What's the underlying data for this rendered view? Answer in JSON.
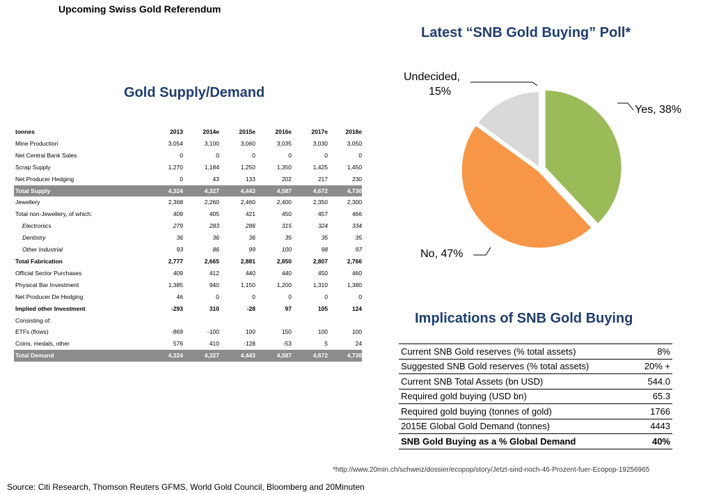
{
  "title": "Upcoming Swiss Gold Referendum",
  "supply_demand": {
    "title": "Gold Supply/Demand",
    "columns": [
      "tonnes",
      "2013",
      "2014e",
      "2015e",
      "2016e",
      "2017e",
      "2018e"
    ],
    "rows": [
      {
        "label": "Mine Production",
        "style": "normal",
        "values": [
          "3,054",
          "3,100",
          "3,060",
          "3,035",
          "3,030",
          "3,050"
        ]
      },
      {
        "label": "Net Central Bank Sales",
        "style": "normal",
        "values": [
          "0",
          "0",
          "0",
          "0",
          "0",
          "0"
        ]
      },
      {
        "label": "Scrap Supply",
        "style": "normal",
        "values": [
          "1,270",
          "1,184",
          "1,250",
          "1,350",
          "1,425",
          "1,450"
        ]
      },
      {
        "label": "Net Producer Hedging",
        "style": "normal",
        "values": [
          "0",
          "43",
          "133",
          "202",
          "217",
          "230"
        ]
      },
      {
        "label": "Total Supply",
        "style": "shade",
        "values": [
          "4,324",
          "4,327",
          "4,443",
          "4,587",
          "4,672",
          "4,730"
        ]
      },
      {
        "label": "Jewellery",
        "style": "normal",
        "values": [
          "2,368",
          "2,260",
          "2,460",
          "2,400",
          "2,350",
          "2,300"
        ]
      },
      {
        "label": "Total non-Jewellery, of which:",
        "style": "normal",
        "values": [
          "409",
          "405",
          "421",
          "450",
          "457",
          "466"
        ]
      },
      {
        "label": "Electronics",
        "style": "italic",
        "values": [
          "279",
          "283",
          "286",
          "315",
          "324",
          "334"
        ]
      },
      {
        "label": "Dentistry",
        "style": "italic",
        "values": [
          "36",
          "36",
          "36",
          "35",
          "35",
          "35"
        ]
      },
      {
        "label": "Other Industrial",
        "style": "italic",
        "values": [
          "93",
          "86",
          "99",
          "100",
          "98",
          "97"
        ]
      },
      {
        "label": "Total Fabrication",
        "style": "bold",
        "values": [
          "2,777",
          "2,665",
          "2,881",
          "2,850",
          "2,807",
          "2,766"
        ]
      },
      {
        "label": "Official Sector Purchases",
        "style": "normal",
        "values": [
          "409",
          "412",
          "440",
          "440",
          "450",
          "460"
        ]
      },
      {
        "label": "Physical Bar Investment",
        "style": "normal",
        "values": [
          "1,385",
          "940",
          "1,150",
          "1,200",
          "1,310",
          "1,380"
        ]
      },
      {
        "label": "Net Producer De Hedging",
        "style": "normal",
        "values": [
          "46",
          "0",
          "0",
          "0",
          "0",
          "0"
        ]
      },
      {
        "label": "Implied other Investment",
        "style": "bold",
        "values": [
          "-293",
          "310",
          "-28",
          "97",
          "105",
          "124"
        ]
      },
      {
        "label": "Consisting of:",
        "style": "normal",
        "values": [
          "",
          "",
          "",
          "",
          "",
          ""
        ]
      },
      {
        "label": "ETFs (flows)",
        "style": "normal",
        "values": [
          "-869",
          "-100",
          "100",
          "150",
          "100",
          "100"
        ]
      },
      {
        "label": "Coins, medals, other",
        "style": "normal",
        "values": [
          "576",
          "410",
          "-128",
          "-53",
          "5",
          "24"
        ]
      },
      {
        "label": "Total Demand",
        "style": "shade",
        "values": [
          "4,324",
          "4,327",
          "4,443",
          "4,587",
          "4,672",
          "4,730"
        ]
      }
    ]
  },
  "poll": {
    "title": "Latest “SNB Gold Buying” Poll*",
    "chart_data": {
      "type": "pie",
      "title": "Latest “SNB Gold Buying” Poll*",
      "categories": [
        "Yes",
        "No",
        "Undecided"
      ],
      "values": [
        38,
        47,
        15
      ],
      "labels": [
        "Yes, 38%",
        "No, 47%",
        "Undecided,",
        "15%"
      ],
      "colors": [
        "#9bbb59",
        "#f79646",
        "#d9d9d9"
      ]
    }
  },
  "implications": {
    "title": "Implications of SNB Gold Buying",
    "rows": [
      {
        "label": "Current SNB Gold reserves (% total assets)",
        "value": "8%"
      },
      {
        "label": "Suggested SNB Gold reserves (% total assets)",
        "value": "20% +"
      },
      {
        "label": "Current SNB Total Assets (bn USD)",
        "value": "544.0"
      },
      {
        "label": "Required gold buying (USD bn)",
        "value": "65.3"
      },
      {
        "label": "Required gold buying (tonnes of gold)",
        "value": "1766"
      },
      {
        "label": "2015E Global Gold Demand (tonnes)",
        "value": "4443"
      },
      {
        "label": "SNB Gold Buying as a % Global Demand",
        "value": "40%"
      }
    ]
  },
  "footnote": "*http://www.20min.ch/schweiz/dossier/ecopop/story/Jetzt-sind-noch-46-Prozent-fuer-Ecopop-19256965",
  "source": "Source: Citi Research, Thomson Reuters GFMS, World Gold Council, Bloomberg and 20Minuten"
}
